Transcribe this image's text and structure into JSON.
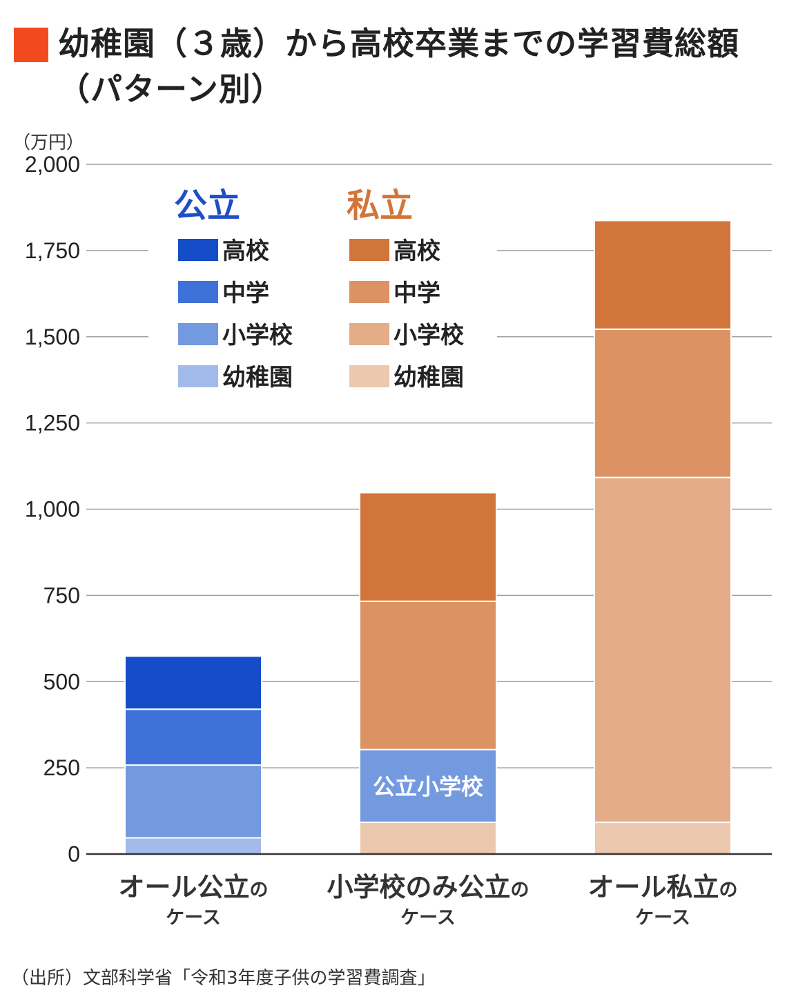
{
  "title": "幼稚園（３歳）から高校卒業までの学習費総額（パターン別）",
  "unit_label": "（万円）",
  "source": "（出所）文部科学省「令和3年度子供の学習費調査」",
  "colors": {
    "title_mark": "#f24a1d",
    "public_head": "#1f4fc4",
    "private_head": "#d2753a",
    "public": {
      "高校": "#154cc8",
      "中学": "#3f72d8",
      "小学校": "#7399df",
      "幼稚園": "#a3bbeb"
    },
    "private": {
      "高校": "#d2753a",
      "中学": "#dc9262",
      "小学校": "#e4ad87",
      "幼稚園": "#ecc9ae"
    }
  },
  "legend": {
    "public_title": "公立",
    "private_title": "私立",
    "items": [
      "高校",
      "中学",
      "小学校",
      "幼稚園"
    ]
  },
  "chart_data": {
    "type": "bar",
    "stacked": true,
    "ylim": [
      0,
      2000
    ],
    "yticks": [
      "0",
      "250",
      "500",
      "750",
      "1,000",
      "1,250",
      "1,500",
      "1,750",
      "2,000"
    ],
    "ytick_values": [
      0,
      250,
      500,
      750,
      1000,
      1250,
      1500,
      1750,
      2000
    ],
    "grid": true,
    "categories": [
      {
        "main": "オール公立",
        "suffix": "の",
        "sub": "ケース"
      },
      {
        "main": "小学校のみ公立",
        "suffix": "の",
        "sub": "ケース"
      },
      {
        "main": "オール私立",
        "suffix": "の",
        "sub": "ケース"
      }
    ],
    "bars": [
      {
        "segments": [
          {
            "stage": "幼稚園",
            "sector": "public",
            "value": 47
          },
          {
            "stage": "小学校",
            "sector": "public",
            "value": 211
          },
          {
            "stage": "中学",
            "sector": "public",
            "value": 162
          },
          {
            "stage": "高校",
            "sector": "public",
            "value": 154
          }
        ]
      },
      {
        "segments": [
          {
            "stage": "幼稚園",
            "sector": "private",
            "value": 92
          },
          {
            "stage": "小学校",
            "sector": "public",
            "value": 211,
            "label": "公立小学校"
          },
          {
            "stage": "中学",
            "sector": "private",
            "value": 430
          },
          {
            "stage": "高校",
            "sector": "private",
            "value": 315
          }
        ]
      },
      {
        "segments": [
          {
            "stage": "幼稚園",
            "sector": "private",
            "value": 92
          },
          {
            "stage": "小学校",
            "sector": "private",
            "value": 1000
          },
          {
            "stage": "中学",
            "sector": "private",
            "value": 430
          },
          {
            "stage": "高校",
            "sector": "private",
            "value": 315
          }
        ]
      }
    ]
  }
}
